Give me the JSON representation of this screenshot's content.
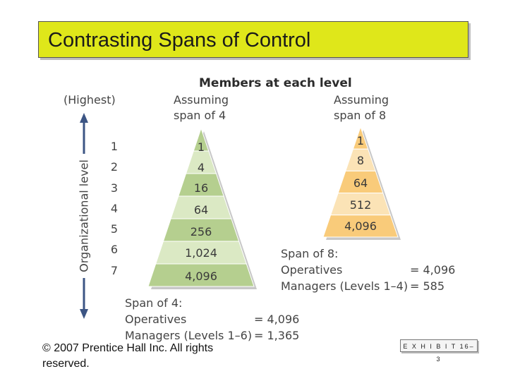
{
  "title": "Contrasting Spans of Control",
  "diagram": {
    "heading": "Members at each level",
    "highest_label": "(Highest)",
    "axis_label": "Organizational level",
    "levels": [
      "1",
      "2",
      "3",
      "4",
      "5",
      "6",
      "7"
    ],
    "span4": {
      "header_line1": "Assuming",
      "header_line2": "span of 4",
      "values": [
        "1",
        "4",
        "16",
        "64",
        "256",
        "1,024",
        "4,096"
      ],
      "colors": [
        "#b5cf8f",
        "#dbe9c4"
      ],
      "summary": {
        "title": "Span of 4:",
        "operatives_label": "Operatives",
        "operatives_value": "= 4,096",
        "managers_label": "Managers (Levels 1–6)",
        "managers_value": "= 1,365"
      }
    },
    "span8": {
      "header_line1": "Assuming",
      "header_line2": "span of 8",
      "values": [
        "1",
        "8",
        "64",
        "512",
        "4,096"
      ],
      "colors": [
        "#f9cb7a",
        "#fbe3b6"
      ],
      "summary": {
        "title": "Span of 8:",
        "operatives_label": "Operatives",
        "operatives_value": "= 4,096",
        "managers_label": "Managers (Levels 1–4)",
        "managers_value": "= 585"
      }
    }
  },
  "footer": {
    "copyright": "© 2007 Prentice Hall Inc. All rights reserved.",
    "exhibit": "E X H I B I T 16–3"
  }
}
